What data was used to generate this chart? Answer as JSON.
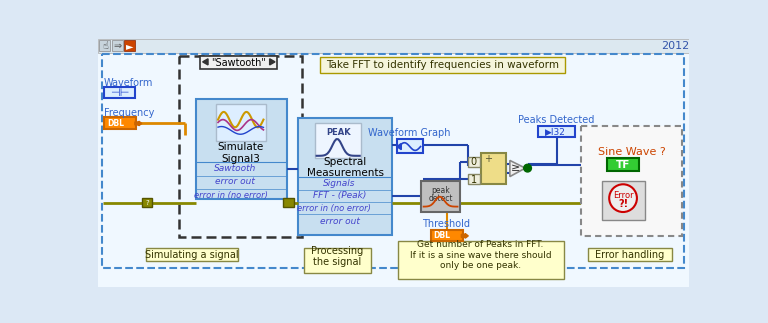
{
  "title_year": "2012",
  "note_text": "Take FFT to identify frequencies in waveform",
  "waveform_label": "Waveform",
  "frequency_label": "Frequency",
  "sawtooth_dropdown": "\"Sawtooth\"",
  "simulate_title": "Simulate\nSignal3",
  "simulate_sub1": "Sawtooth",
  "simulate_sub2": "error out",
  "simulate_sub3": "error in (no error)",
  "spectral_title": "Spectral\nMeasurements",
  "spectral_sub1": "Signals",
  "spectral_sub2": "FFT - (Peak)",
  "spectral_sub3": "error in (no error)",
  "spectral_sub4": "error out",
  "waveform_graph_label": "Waveform Graph",
  "peaks_detected_label": "Peaks Detected",
  "threshold_label": "Threshold",
  "sine_wave_label": "Sine Wave ?",
  "section1_label": "Simulating a signal",
  "section2_label": "Processing\nthe signal",
  "section3_label": "Get number of Peaks in FFT.\nIf it is a sine wave there should\nonly be one peak.",
  "section4_label": "Error handling",
  "blue_mid": "#3366cc",
  "orange": "#ff8800",
  "orange_dark": "#cc6600",
  "green_dark": "#006600",
  "wire_blue": "#2244aa",
  "wire_orange": "#dd8800",
  "wire_olive": "#888800"
}
